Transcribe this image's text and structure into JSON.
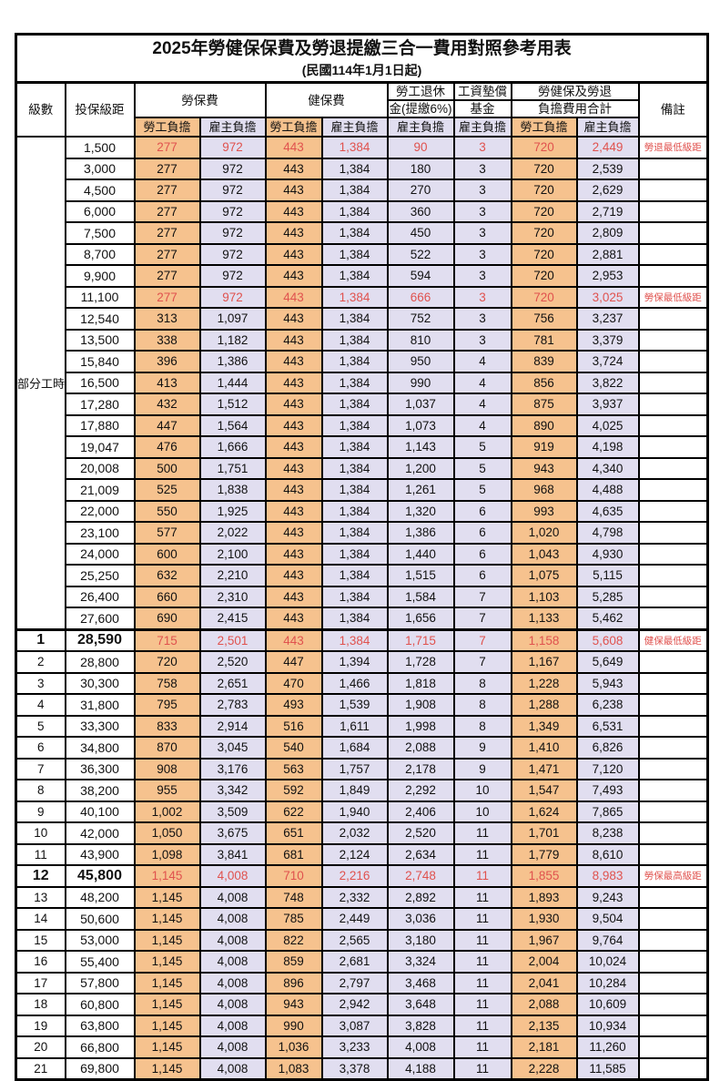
{
  "title": {
    "main": "2025年勞健保保費及勞退提繳三合一費用對照參考用表",
    "sub": "(民國114年1月1日起)"
  },
  "header": {
    "level_label": "級數",
    "bracket_label": "投保級距",
    "labor_label": "勞保費",
    "health_label": "健保費",
    "pension_line1": "勞工退休",
    "pension_line2": "金(提繳6%)",
    "fund_line1": "工資墊償",
    "fund_line2": "基金",
    "total_line1": "勞健保及勞退",
    "total_line2": "負擔費用合計",
    "remark_label": "備註",
    "employee_label": "勞工負擔",
    "employer_label": "雇主負擔"
  },
  "colors": {
    "employee_bg": "#f6c28e",
    "employer_bg": "#e1def0",
    "highlight_text": "#e0524e",
    "border": "#000000"
  },
  "sections": {
    "part_time": {
      "label": "部分工時",
      "rows": [
        {
          "bracket": "1,500",
          "values": [
            "277",
            "972",
            "443",
            "1,384",
            "90",
            "3",
            "720",
            "2,449"
          ],
          "remark": "勞退最低級距",
          "highlight": true,
          "emphasis": false
        },
        {
          "bracket": "3,000",
          "values": [
            "277",
            "972",
            "443",
            "1,384",
            "180",
            "3",
            "720",
            "2,539"
          ],
          "remark": "",
          "highlight": false,
          "emphasis": false
        },
        {
          "bracket": "4,500",
          "values": [
            "277",
            "972",
            "443",
            "1,384",
            "270",
            "3",
            "720",
            "2,629"
          ],
          "remark": "",
          "highlight": false,
          "emphasis": false
        },
        {
          "bracket": "6,000",
          "values": [
            "277",
            "972",
            "443",
            "1,384",
            "360",
            "3",
            "720",
            "2,719"
          ],
          "remark": "",
          "highlight": false,
          "emphasis": false
        },
        {
          "bracket": "7,500",
          "values": [
            "277",
            "972",
            "443",
            "1,384",
            "450",
            "3",
            "720",
            "2,809"
          ],
          "remark": "",
          "highlight": false,
          "emphasis": false
        },
        {
          "bracket": "8,700",
          "values": [
            "277",
            "972",
            "443",
            "1,384",
            "522",
            "3",
            "720",
            "2,881"
          ],
          "remark": "",
          "highlight": false,
          "emphasis": false
        },
        {
          "bracket": "9,900",
          "values": [
            "277",
            "972",
            "443",
            "1,384",
            "594",
            "3",
            "720",
            "2,953"
          ],
          "remark": "",
          "highlight": false,
          "emphasis": false
        },
        {
          "bracket": "11,100",
          "values": [
            "277",
            "972",
            "443",
            "1,384",
            "666",
            "3",
            "720",
            "3,025"
          ],
          "remark": "勞保最低級距",
          "highlight": true,
          "emphasis": false
        },
        {
          "bracket": "12,540",
          "values": [
            "313",
            "1,097",
            "443",
            "1,384",
            "752",
            "3",
            "756",
            "3,237"
          ],
          "remark": "",
          "highlight": false,
          "emphasis": false
        },
        {
          "bracket": "13,500",
          "values": [
            "338",
            "1,182",
            "443",
            "1,384",
            "810",
            "3",
            "781",
            "3,379"
          ],
          "remark": "",
          "highlight": false,
          "emphasis": false
        },
        {
          "bracket": "15,840",
          "values": [
            "396",
            "1,386",
            "443",
            "1,384",
            "950",
            "4",
            "839",
            "3,724"
          ],
          "remark": "",
          "highlight": false,
          "emphasis": false
        },
        {
          "bracket": "16,500",
          "values": [
            "413",
            "1,444",
            "443",
            "1,384",
            "990",
            "4",
            "856",
            "3,822"
          ],
          "remark": "",
          "highlight": false,
          "emphasis": false
        },
        {
          "bracket": "17,280",
          "values": [
            "432",
            "1,512",
            "443",
            "1,384",
            "1,037",
            "4",
            "875",
            "3,937"
          ],
          "remark": "",
          "highlight": false,
          "emphasis": false
        },
        {
          "bracket": "17,880",
          "values": [
            "447",
            "1,564",
            "443",
            "1,384",
            "1,073",
            "4",
            "890",
            "4,025"
          ],
          "remark": "",
          "highlight": false,
          "emphasis": false
        },
        {
          "bracket": "19,047",
          "values": [
            "476",
            "1,666",
            "443",
            "1,384",
            "1,143",
            "5",
            "919",
            "4,198"
          ],
          "remark": "",
          "highlight": false,
          "emphasis": false
        },
        {
          "bracket": "20,008",
          "values": [
            "500",
            "1,751",
            "443",
            "1,384",
            "1,200",
            "5",
            "943",
            "4,340"
          ],
          "remark": "",
          "highlight": false,
          "emphasis": false
        },
        {
          "bracket": "21,009",
          "values": [
            "525",
            "1,838",
            "443",
            "1,384",
            "1,261",
            "5",
            "968",
            "4,488"
          ],
          "remark": "",
          "highlight": false,
          "emphasis": false
        },
        {
          "bracket": "22,000",
          "values": [
            "550",
            "1,925",
            "443",
            "1,384",
            "1,320",
            "6",
            "993",
            "4,635"
          ],
          "remark": "",
          "highlight": false,
          "emphasis": false
        },
        {
          "bracket": "23,100",
          "values": [
            "577",
            "2,022",
            "443",
            "1,384",
            "1,386",
            "6",
            "1,020",
            "4,798"
          ],
          "remark": "",
          "highlight": false,
          "emphasis": false
        },
        {
          "bracket": "24,000",
          "values": [
            "600",
            "2,100",
            "443",
            "1,384",
            "1,440",
            "6",
            "1,043",
            "4,930"
          ],
          "remark": "",
          "highlight": false,
          "emphasis": false
        },
        {
          "bracket": "25,250",
          "values": [
            "632",
            "2,210",
            "443",
            "1,384",
            "1,515",
            "6",
            "1,075",
            "5,115"
          ],
          "remark": "",
          "highlight": false,
          "emphasis": false
        },
        {
          "bracket": "26,400",
          "values": [
            "660",
            "2,310",
            "443",
            "1,384",
            "1,584",
            "7",
            "1,103",
            "5,285"
          ],
          "remark": "",
          "highlight": false,
          "emphasis": false
        },
        {
          "bracket": "27,600",
          "values": [
            "690",
            "2,415",
            "443",
            "1,384",
            "1,656",
            "7",
            "1,133",
            "5,462"
          ],
          "remark": "",
          "highlight": false,
          "emphasis": false
        }
      ]
    },
    "levels": {
      "rows": [
        {
          "level": "1",
          "bracket": "28,590",
          "values": [
            "715",
            "2,501",
            "443",
            "1,384",
            "1,715",
            "7",
            "1,158",
            "5,608"
          ],
          "remark": "健保最低級距",
          "highlight": true,
          "emphasis": true
        },
        {
          "level": "2",
          "bracket": "28,800",
          "values": [
            "720",
            "2,520",
            "447",
            "1,394",
            "1,728",
            "7",
            "1,167",
            "5,649"
          ],
          "remark": "",
          "highlight": false,
          "emphasis": false
        },
        {
          "level": "3",
          "bracket": "30,300",
          "values": [
            "758",
            "2,651",
            "470",
            "1,466",
            "1,818",
            "8",
            "1,228",
            "5,943"
          ],
          "remark": "",
          "highlight": false,
          "emphasis": false
        },
        {
          "level": "4",
          "bracket": "31,800",
          "values": [
            "795",
            "2,783",
            "493",
            "1,539",
            "1,908",
            "8",
            "1,288",
            "6,238"
          ],
          "remark": "",
          "highlight": false,
          "emphasis": false
        },
        {
          "level": "5",
          "bracket": "33,300",
          "values": [
            "833",
            "2,914",
            "516",
            "1,611",
            "1,998",
            "8",
            "1,349",
            "6,531"
          ],
          "remark": "",
          "highlight": false,
          "emphasis": false
        },
        {
          "level": "6",
          "bracket": "34,800",
          "values": [
            "870",
            "3,045",
            "540",
            "1,684",
            "2,088",
            "9",
            "1,410",
            "6,826"
          ],
          "remark": "",
          "highlight": false,
          "emphasis": false
        },
        {
          "level": "7",
          "bracket": "36,300",
          "values": [
            "908",
            "3,176",
            "563",
            "1,757",
            "2,178",
            "9",
            "1,471",
            "7,120"
          ],
          "remark": "",
          "highlight": false,
          "emphasis": false
        },
        {
          "level": "8",
          "bracket": "38,200",
          "values": [
            "955",
            "3,342",
            "592",
            "1,849",
            "2,292",
            "10",
            "1,547",
            "7,493"
          ],
          "remark": "",
          "highlight": false,
          "emphasis": false
        },
        {
          "level": "9",
          "bracket": "40,100",
          "values": [
            "1,002",
            "3,509",
            "622",
            "1,940",
            "2,406",
            "10",
            "1,624",
            "7,865"
          ],
          "remark": "",
          "highlight": false,
          "emphasis": false
        },
        {
          "level": "10",
          "bracket": "42,000",
          "values": [
            "1,050",
            "3,675",
            "651",
            "2,032",
            "2,520",
            "11",
            "1,701",
            "8,238"
          ],
          "remark": "",
          "highlight": false,
          "emphasis": false
        },
        {
          "level": "11",
          "bracket": "43,900",
          "values": [
            "1,098",
            "3,841",
            "681",
            "2,124",
            "2,634",
            "11",
            "1,779",
            "8,610"
          ],
          "remark": "",
          "highlight": false,
          "emphasis": false
        },
        {
          "level": "12",
          "bracket": "45,800",
          "values": [
            "1,145",
            "4,008",
            "710",
            "2,216",
            "2,748",
            "11",
            "1,855",
            "8,983"
          ],
          "remark": "勞保最高級距",
          "highlight": true,
          "emphasis": true
        },
        {
          "level": "13",
          "bracket": "48,200",
          "values": [
            "1,145",
            "4,008",
            "748",
            "2,332",
            "2,892",
            "11",
            "1,893",
            "9,243"
          ],
          "remark": "",
          "highlight": false,
          "emphasis": false
        },
        {
          "level": "14",
          "bracket": "50,600",
          "values": [
            "1,145",
            "4,008",
            "785",
            "2,449",
            "3,036",
            "11",
            "1,930",
            "9,504"
          ],
          "remark": "",
          "highlight": false,
          "emphasis": false
        },
        {
          "level": "15",
          "bracket": "53,000",
          "values": [
            "1,145",
            "4,008",
            "822",
            "2,565",
            "3,180",
            "11",
            "1,967",
            "9,764"
          ],
          "remark": "",
          "highlight": false,
          "emphasis": false
        },
        {
          "level": "16",
          "bracket": "55,400",
          "values": [
            "1,145",
            "4,008",
            "859",
            "2,681",
            "3,324",
            "11",
            "2,004",
            "10,024"
          ],
          "remark": "",
          "highlight": false,
          "emphasis": false
        },
        {
          "level": "17",
          "bracket": "57,800",
          "values": [
            "1,145",
            "4,008",
            "896",
            "2,797",
            "3,468",
            "11",
            "2,041",
            "10,284"
          ],
          "remark": "",
          "highlight": false,
          "emphasis": false
        },
        {
          "level": "18",
          "bracket": "60,800",
          "values": [
            "1,145",
            "4,008",
            "943",
            "2,942",
            "3,648",
            "11",
            "2,088",
            "10,609"
          ],
          "remark": "",
          "highlight": false,
          "emphasis": false
        },
        {
          "level": "19",
          "bracket": "63,800",
          "values": [
            "1,145",
            "4,008",
            "990",
            "3,087",
            "3,828",
            "11",
            "2,135",
            "10,934"
          ],
          "remark": "",
          "highlight": false,
          "emphasis": false
        },
        {
          "level": "20",
          "bracket": "66,800",
          "values": [
            "1,145",
            "4,008",
            "1,036",
            "3,233",
            "4,008",
            "11",
            "2,181",
            "11,260"
          ],
          "remark": "",
          "highlight": false,
          "emphasis": false
        },
        {
          "level": "21",
          "bracket": "69,800",
          "values": [
            "1,145",
            "4,008",
            "1,083",
            "3,378",
            "4,188",
            "11",
            "2,228",
            "11,585"
          ],
          "remark": "",
          "highlight": false,
          "emphasis": false
        }
      ]
    }
  }
}
